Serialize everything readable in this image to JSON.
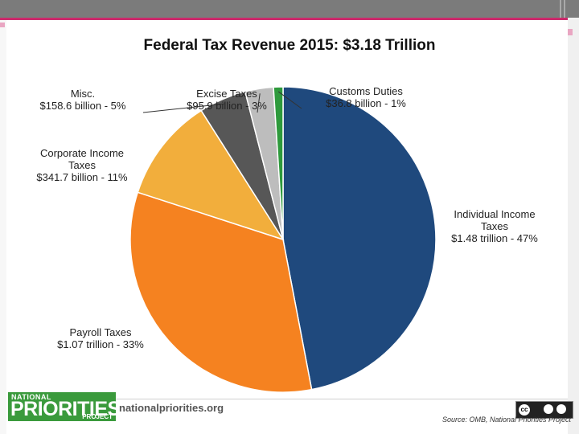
{
  "chart_data": {
    "type": "pie",
    "title": "Federal Tax Revenue 2015: $3.18 Trillion",
    "slices": [
      {
        "name": "Individual Income Taxes",
        "amount": "$1.48 trillion",
        "percent": 47,
        "color": "#1f497d",
        "label_lines": [
          "Individual Income",
          "Taxes",
          "$1.48 trillion - 47%"
        ]
      },
      {
        "name": "Payroll Taxes",
        "amount": "$1.07 trillion",
        "percent": 33,
        "color": "#f58220",
        "label_lines": [
          "Payroll Taxes",
          "$1.07 trillion - 33%"
        ]
      },
      {
        "name": "Corporate Income Taxes",
        "amount": "$341.7 billion",
        "percent": 11,
        "color": "#f2ae3c",
        "label_lines": [
          "Corporate Income",
          "Taxes",
          "$341.7 billion - 11%"
        ]
      },
      {
        "name": "Misc.",
        "amount": "$158.6 billion",
        "percent": 5,
        "color": "#575757",
        "label_lines": [
          "Misc.",
          "$158.6 billion - 5%"
        ]
      },
      {
        "name": "Excise Taxes",
        "amount": "$95.9 billion",
        "percent": 3,
        "color": "#bdbdbd",
        "label_lines": [
          "Excise Taxes",
          "$95.9 billion - 3%"
        ]
      },
      {
        "name": "Customs Duties",
        "amount": "$36.8 billion",
        "percent": 1,
        "color": "#2e9a3c",
        "label_lines": [
          "Customs Duties",
          "$36.8 billion - 1%"
        ]
      }
    ]
  },
  "footer": {
    "logo_top": "NATIONAL",
    "logo_main": "PRIORITIES",
    "logo_sub": "PROJECT",
    "website": "nationalpriorities.org",
    "cc_label": "cc",
    "source": "Source: OMB, National Priorities Project"
  }
}
